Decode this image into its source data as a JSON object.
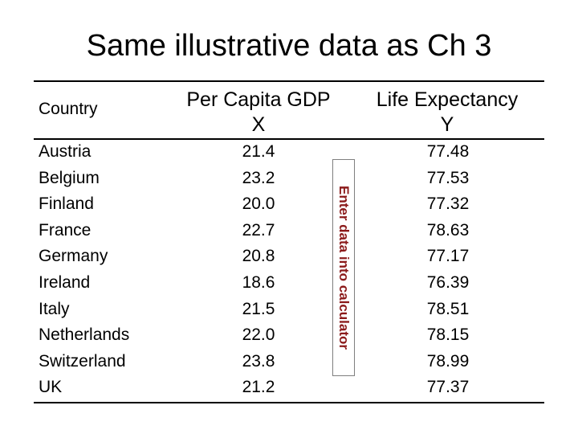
{
  "title": "Same illustrative data as Ch 3",
  "headers": {
    "country": "Country",
    "gdp_line1": "Per Capita GDP",
    "gdp_line2": "X",
    "life_line1": "Life Expectancy",
    "life_line2": "Y"
  },
  "rows": [
    {
      "country": "Austria",
      "gdp": "21.4",
      "life": "77.48"
    },
    {
      "country": "Belgium",
      "gdp": "23.2",
      "life": "77.53"
    },
    {
      "country": "Finland",
      "gdp": "20.0",
      "life": "77.32"
    },
    {
      "country": "France",
      "gdp": "22.7",
      "life": "78.63"
    },
    {
      "country": "Germany",
      "gdp": "20.8",
      "life": "77.17"
    },
    {
      "country": "Ireland",
      "gdp": "18.6",
      "life": "76.39"
    },
    {
      "country": "Italy",
      "gdp": "21.5",
      "life": "78.51"
    },
    {
      "country": "Netherlands",
      "gdp": "22.0",
      "life": "78.15"
    },
    {
      "country": "Switzerland",
      "gdp": "23.8",
      "life": "78.99"
    },
    {
      "country": "UK",
      "gdp": "21.2",
      "life": "77.37"
    }
  ],
  "note": {
    "text": "Enter data into calculator",
    "color": "#8b1a1a"
  }
}
